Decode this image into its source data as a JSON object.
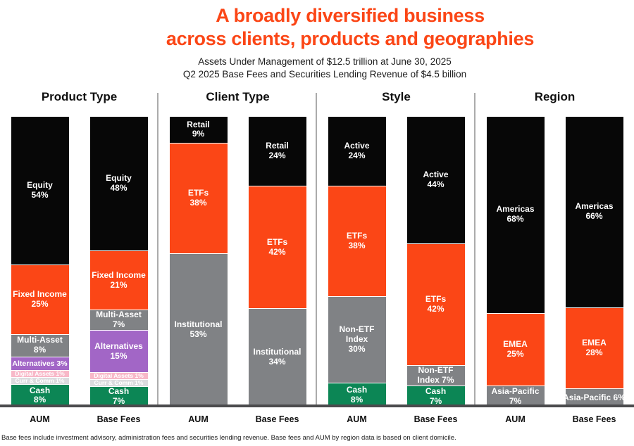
{
  "page": {
    "title_line1": "A broadly diversified business",
    "title_line2": "across clients, products and geographies",
    "subtitle_line1": "Assets Under Management of $12.5 trillion at June 30, 2025",
    "subtitle_line2": "Q2 2025 Base Fees and Securities Lending Revenue of $4.5 billion",
    "footnote": "Base fees include investment advisory, administration fees and securities lending revenue. Base fees and AUM by region data is based on client domicile."
  },
  "colors": {
    "title": "#FB4616",
    "black": "#070707",
    "orange": "#FB4616",
    "gray": "#808285",
    "green": "#0C8655",
    "purple": "#A266C6",
    "pink": "#F8B8C8",
    "light_gray": "#DBDBDE",
    "divider": "#ABABAB",
    "baseline": "#4B4B4D",
    "text_on_bar": "#FFFFFF"
  },
  "chart_data": {
    "type": "bar",
    "variant": "stacked-100-percent",
    "unit": "%",
    "ylim": [
      0,
      100
    ],
    "grid": false,
    "legend_position": "none",
    "bar_axis_labels": [
      "AUM",
      "Base Fees"
    ],
    "sections": [
      {
        "title": "Product Type",
        "bars": [
          {
            "axis_label": "AUM",
            "segments": [
              {
                "name": "Equity",
                "value": 54,
                "color": "black",
                "lines": [
                  "Equity",
                  "54%"
                ]
              },
              {
                "name": "Fixed Income",
                "value": 25,
                "color": "orange",
                "lines": [
                  "Fixed Income",
                  "25%"
                ]
              },
              {
                "name": "Multi-Asset",
                "value": 8,
                "color": "gray",
                "lines": [
                  "Multi-Asset",
                  "8%"
                ]
              },
              {
                "name": "Alternatives",
                "value": 3,
                "color": "purple",
                "lines": [
                  "Alternatives 3%"
                ]
              },
              {
                "name": "Digital Assets",
                "value": 1,
                "color": "pink",
                "lines": [
                  "Digital Assets 1%"
                ]
              },
              {
                "name": "Curr & Comm",
                "value": 1,
                "color": "light_gray",
                "lines": [
                  "Curr & Comm 1%"
                ]
              },
              {
                "name": "Cash",
                "value": 8,
                "color": "green",
                "lines": [
                  "Cash",
                  "8%"
                ]
              }
            ]
          },
          {
            "axis_label": "Base Fees",
            "segments": [
              {
                "name": "Equity",
                "value": 48,
                "color": "black",
                "lines": [
                  "Equity",
                  "48%"
                ]
              },
              {
                "name": "Fixed Income",
                "value": 21,
                "color": "orange",
                "lines": [
                  "Fixed Income",
                  "21%"
                ]
              },
              {
                "name": "Multi-Asset",
                "value": 7,
                "color": "gray",
                "lines": [
                  "Multi-Asset",
                  "7%"
                ]
              },
              {
                "name": "Alternatives",
                "value": 15,
                "color": "purple",
                "lines": [
                  "Alternatives",
                  "15%"
                ]
              },
              {
                "name": "Digital Assets",
                "value": 1,
                "color": "pink",
                "lines": [
                  "Digital Assets 1%"
                ]
              },
              {
                "name": "Curr & Comm",
                "value": 1,
                "color": "light_gray",
                "lines": [
                  "Curr & Comm 1%"
                ]
              },
              {
                "name": "Cash",
                "value": 7,
                "color": "green",
                "lines": [
                  "Cash",
                  "7%"
                ]
              }
            ]
          }
        ]
      },
      {
        "title": "Client Type",
        "bars": [
          {
            "axis_label": "AUM",
            "segments": [
              {
                "name": "Retail",
                "value": 9,
                "color": "black",
                "lines": [
                  "Retail",
                  "9%"
                ]
              },
              {
                "name": "ETFs",
                "value": 38,
                "color": "orange",
                "lines": [
                  "ETFs",
                  "38%"
                ]
              },
              {
                "name": "Institutional",
                "value": 53,
                "color": "gray",
                "lines": [
                  "Institutional",
                  "53%"
                ]
              }
            ]
          },
          {
            "axis_label": "Base Fees",
            "segments": [
              {
                "name": "Retail",
                "value": 24,
                "color": "black",
                "lines": [
                  "Retail",
                  "24%"
                ]
              },
              {
                "name": "ETFs",
                "value": 42,
                "color": "orange",
                "lines": [
                  "ETFs",
                  "42%"
                ]
              },
              {
                "name": "Institutional",
                "value": 34,
                "color": "gray",
                "lines": [
                  "Institutional",
                  "34%"
                ]
              }
            ]
          }
        ]
      },
      {
        "title": "Style",
        "bars": [
          {
            "axis_label": "AUM",
            "segments": [
              {
                "name": "Active",
                "value": 24,
                "color": "black",
                "lines": [
                  "Active",
                  "24%"
                ]
              },
              {
                "name": "ETFs",
                "value": 38,
                "color": "orange",
                "lines": [
                  "ETFs",
                  "38%"
                ]
              },
              {
                "name": "Non-ETF Index",
                "value": 30,
                "color": "gray",
                "lines": [
                  "Non-ETF",
                  "Index",
                  "30%"
                ]
              },
              {
                "name": "Cash",
                "value": 8,
                "color": "green",
                "lines": [
                  "Cash",
                  "8%"
                ]
              }
            ]
          },
          {
            "axis_label": "Base Fees",
            "segments": [
              {
                "name": "Active",
                "value": 44,
                "color": "black",
                "lines": [
                  "Active",
                  "44%"
                ]
              },
              {
                "name": "ETFs",
                "value": 42,
                "color": "orange",
                "lines": [
                  "ETFs",
                  "42%"
                ]
              },
              {
                "name": "Non-ETF Index",
                "value": 7,
                "color": "gray",
                "lines": [
                  "Non-ETF",
                  "Index 7%"
                ]
              },
              {
                "name": "Cash",
                "value": 7,
                "color": "green",
                "lines": [
                  "Cash",
                  "7%"
                ]
              }
            ]
          }
        ]
      },
      {
        "title": "Region",
        "bars": [
          {
            "axis_label": "AUM",
            "segments": [
              {
                "name": "Americas",
                "value": 68,
                "color": "black",
                "lines": [
                  "Americas",
                  "68%"
                ]
              },
              {
                "name": "EMEA",
                "value": 25,
                "color": "orange",
                "lines": [
                  "EMEA",
                  "25%"
                ]
              },
              {
                "name": "Asia-Pacific",
                "value": 7,
                "color": "gray",
                "lines": [
                  "Asia-Pacific",
                  "7%"
                ]
              }
            ]
          },
          {
            "axis_label": "Base Fees",
            "segments": [
              {
                "name": "Americas",
                "value": 66,
                "color": "black",
                "lines": [
                  "Americas",
                  "66%"
                ]
              },
              {
                "name": "EMEA",
                "value": 28,
                "color": "orange",
                "lines": [
                  "EMEA",
                  "28%"
                ]
              },
              {
                "name": "Asia-Pacific",
                "value": 6,
                "color": "gray",
                "lines": [
                  "Asia-Pacific 6%"
                ]
              }
            ]
          }
        ]
      }
    ]
  }
}
